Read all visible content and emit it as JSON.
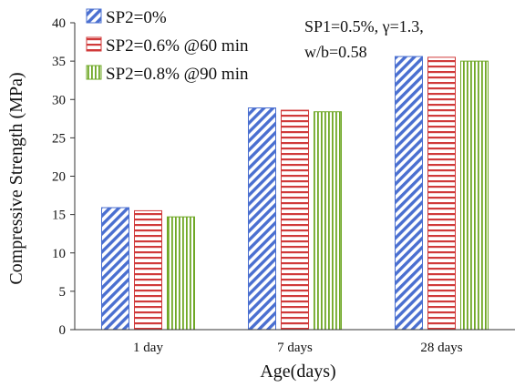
{
  "chart_data": {
    "type": "bar",
    "xlabel": "Age(days)",
    "ylabel": "Compressive Strength (MPa)",
    "ylim": [
      0,
      40
    ],
    "yticks": [
      0,
      5,
      10,
      15,
      20,
      25,
      30,
      35,
      40
    ],
    "grid": false,
    "legend_position": "top-left",
    "categories": [
      "1 day",
      "7 days",
      "28 days"
    ],
    "series": [
      {
        "name": "SP2=0%",
        "values": [
          15.9,
          28.9,
          35.6
        ],
        "color": "#4a6fd0",
        "pattern": "diagonal-hatch"
      },
      {
        "name": "SP2=0.6% @60 min",
        "values": [
          15.5,
          28.6,
          35.5
        ],
        "color": "#d03a3a",
        "pattern": "horizontal-lines"
      },
      {
        "name": "SP2=0.8% @90 min",
        "values": [
          14.7,
          28.4,
          35.0
        ],
        "color": "#6fa826",
        "pattern": "vertical-lines"
      }
    ],
    "annotation": [
      "SP1=0.5%, γ=1.3,",
      "w/b=0.58"
    ]
  }
}
